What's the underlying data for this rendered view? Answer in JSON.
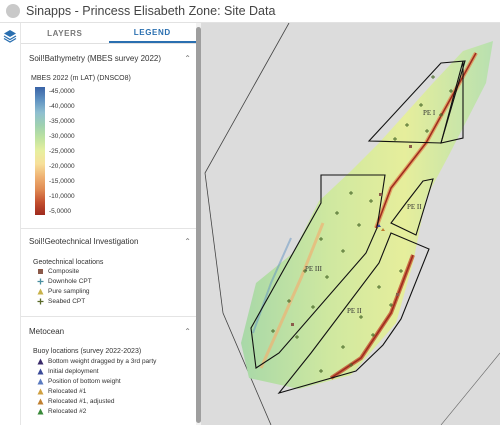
{
  "app": {
    "title": "Sinapps - Princess Elisabeth Zone: Site Data"
  },
  "tabs": [
    {
      "label": "LAYERS",
      "active": false
    },
    {
      "label": "LEGEND",
      "active": true
    }
  ],
  "bathymetry": {
    "section_title": "Soil!Bathymetry (MBES survey 2022)",
    "layer_title": "MBES 2022 (m LAT) (DNSCO8)",
    "ramp_labels": [
      "-45,0000",
      "-40,0000",
      "-35,0000",
      "-30,0000",
      "-25,0000",
      "-20,0000",
      "-15,0000",
      "-10,0000",
      "-5,0000"
    ]
  },
  "geotech": {
    "section_title": "Soil!Geotechnical Investigation",
    "layer_title": "Geotechnical locations",
    "items": [
      {
        "label": "Composite",
        "symbol": "square",
        "color": "#8b5a4a"
      },
      {
        "label": "Downhole CPT",
        "symbol": "plus",
        "color": "#4a8fa0"
      },
      {
        "label": "Pure sampling",
        "symbol": "triangle",
        "color": "#c8b24a"
      },
      {
        "label": "Seabed CPT",
        "symbol": "plus",
        "color": "#5a6a2a"
      }
    ]
  },
  "metocean": {
    "section_title": "Metocean",
    "layer_title": "Buoy locations (survey 2022-2023)",
    "items": [
      {
        "label": "Bottom weight dragged by a 3rd party",
        "color": "#3a2a6a"
      },
      {
        "label": "Initial deployment",
        "color": "#3a4a9a"
      },
      {
        "label": "Position of bottom weight",
        "color": "#5a7ac0"
      },
      {
        "label": "Relocated #1",
        "color": "#d0a040"
      },
      {
        "label": "Relocated #1, adjusted",
        "color": "#c08030"
      },
      {
        "label": "Relocated #2",
        "color": "#3a8a3a"
      }
    ]
  },
  "map": {
    "zone_labels": [
      "PE I",
      "PE II",
      "PE III",
      "PE II"
    ]
  }
}
